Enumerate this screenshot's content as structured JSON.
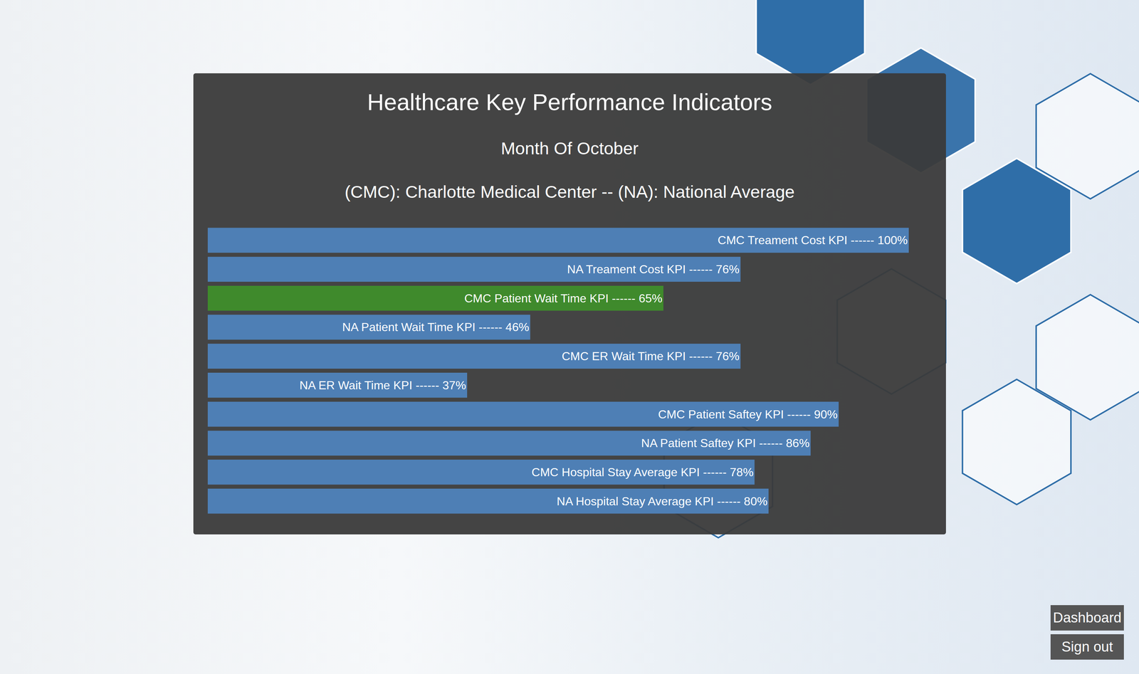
{
  "chart_data": {
    "type": "bar",
    "title": "Healthcare Key Performance Indicators",
    "subtitle": [
      "Month Of October",
      "(CMC): Charlotte Medical Center -- (NA): National Average"
    ],
    "orientation": "horizontal",
    "categories": [
      "CMC Treament Cost KPI",
      "NA Treament Cost KPI",
      "CMC Patient Wait Time KPI",
      "NA Patient Wait Time KPI",
      "CMC ER Wait Time KPI",
      "NA ER Wait Time KPI",
      "CMC Patient Saftey KPI",
      "NA Patient Saftey KPI",
      "CMC Hospital Stay Average KPI",
      "NA Hospital Stay Average KPI"
    ],
    "values": [
      100,
      76,
      65,
      46,
      76,
      37,
      90,
      86,
      78,
      80
    ],
    "value_labels": [
      "CMC Treament Cost KPI ------ 100%",
      "NA Treament Cost KPI ------ 76%",
      "CMC Patient Wait Time KPI ------ 65%",
      "NA Patient Wait Time KPI ------ 46%",
      "CMC ER Wait Time KPI ------ 76%",
      "NA ER Wait Time KPI ------ 37%",
      "CMC Patient Saftey KPI ------ 90%",
      "NA Patient Saftey KPI ------ 86%",
      "CMC Hospital Stay Average KPI ------ 78%",
      "NA Hospital Stay Average KPI ------ 80%"
    ],
    "colors": [
      "#4e7fb5",
      "#4e7fb5",
      "#3f8a2c",
      "#4e7fb5",
      "#4e7fb5",
      "#4e7fb5",
      "#4e7fb5",
      "#4e7fb5",
      "#4e7fb5",
      "#4e7fb5"
    ],
    "data_labels": true,
    "tick_labels": false,
    "grid": false,
    "xlim": [
      0,
      100
    ]
  },
  "page": {
    "buttons": [
      "Dashboard",
      "Sign out"
    ]
  }
}
